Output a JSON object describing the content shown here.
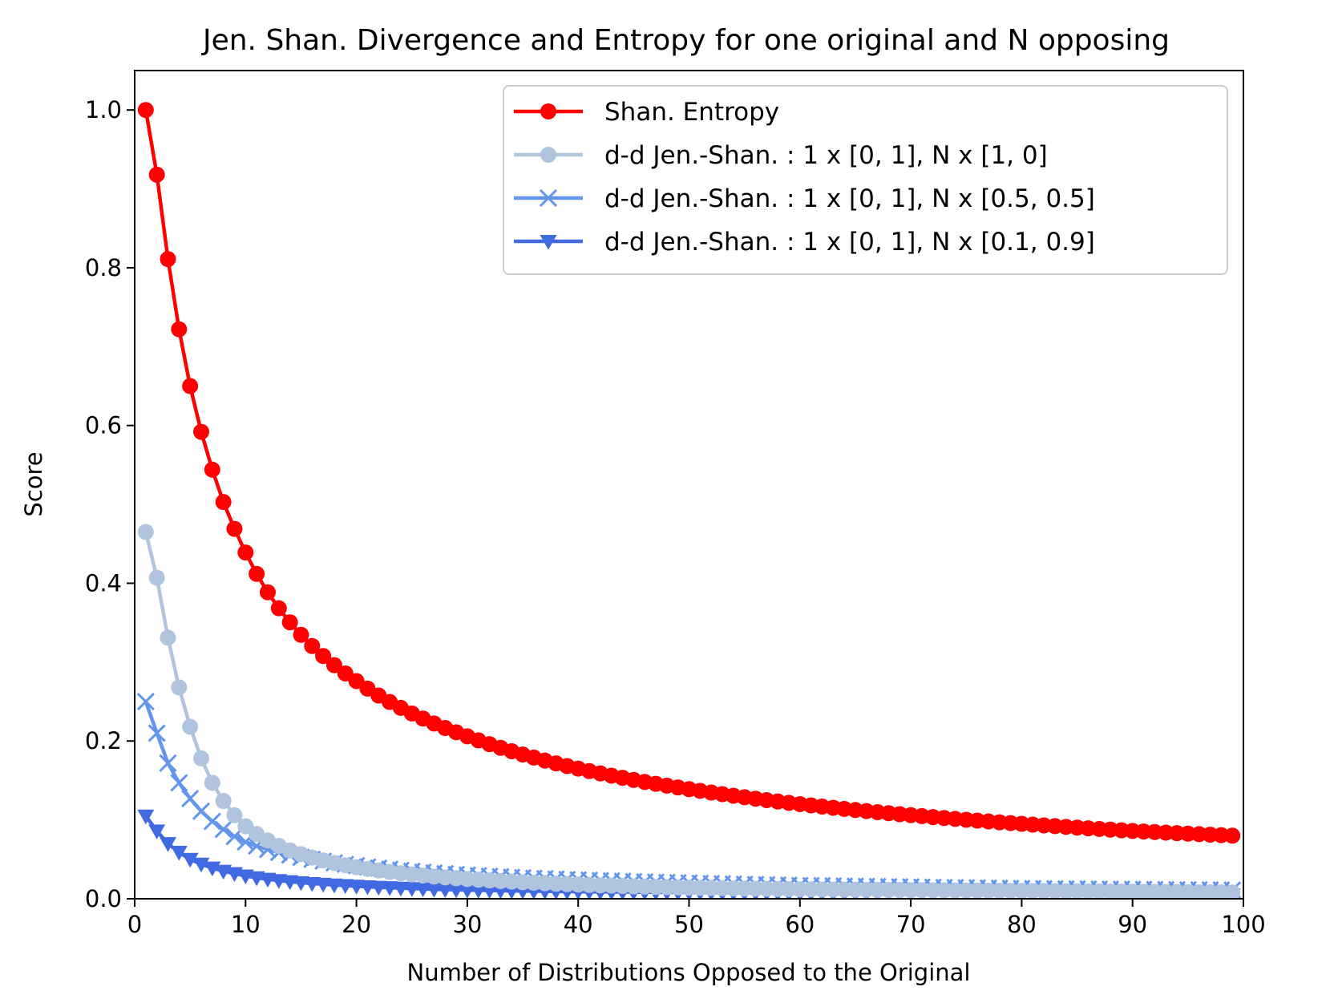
{
  "chart_data": {
    "type": "line",
    "title": "Jen. Shan. Divergence and Entropy for one original and N opposing",
    "xlabel": "Number of Distributions Opposed to the Original",
    "ylabel": "Score",
    "xlim": [
      0,
      100
    ],
    "ylim": [
      0,
      1.05
    ],
    "x_ticks": [
      0,
      10,
      20,
      30,
      40,
      50,
      60,
      70,
      80,
      90,
      100
    ],
    "x_tick_labels": [
      "0",
      "10",
      "20",
      "30",
      "40",
      "50",
      "60",
      "70",
      "80",
      "90",
      "100"
    ],
    "y_ticks": [
      0,
      0.2,
      0.4,
      0.6,
      0.8,
      1.0
    ],
    "y_tick_labels": [
      "0.0",
      "0.2",
      "0.4",
      "0.6",
      "0.8",
      "1.0"
    ],
    "grid": false,
    "legend_position": "top-right",
    "x_range": {
      "start": 1,
      "end": 99,
      "step": 1
    },
    "series": [
      {
        "name": "Shan. Entropy",
        "color": "#ff0000",
        "marker": "circle",
        "approx_values": {
          "1": 1.0,
          "2": 0.918,
          "3": 0.811,
          "4": 0.722,
          "5": 0.65,
          "6": 0.592,
          "7": 0.544,
          "8": 0.503,
          "9": 0.469,
          "10": 0.439,
          "20": 0.276,
          "30": 0.206,
          "40": 0.165,
          "50": 0.139,
          "60": 0.12,
          "70": 0.106,
          "80": 0.095,
          "90": 0.086,
          "99": 0.08
        }
      },
      {
        "name": "d-d Jen.-Shan. : 1 x [0, 1], N x [1, 0]",
        "color": "#b0c4de",
        "marker": "circle",
        "approx_values": {
          "1": 0.465,
          "2": 0.407,
          "3": 0.331,
          "4": 0.268,
          "5": 0.218,
          "6": 0.178,
          "7": 0.147,
          "8": 0.124,
          "9": 0.106,
          "10": 0.092,
          "20": 0.04,
          "30": 0.025,
          "40": 0.018,
          "50": 0.014,
          "60": 0.012,
          "70": 0.011,
          "80": 0.01,
          "90": 0.009,
          "99": 0.008
        }
      },
      {
        "name": "d-d Jen.-Shan. : 1 x [0, 1], N x [0.5, 0.5]",
        "color": "#6495ed",
        "marker": "x",
        "approx_values": {
          "1": 0.25,
          "2": 0.21,
          "3": 0.172,
          "4": 0.147,
          "5": 0.127,
          "6": 0.111,
          "7": 0.098,
          "8": 0.088,
          "9": 0.079,
          "10": 0.072,
          "20": 0.042,
          "30": 0.03,
          "40": 0.024,
          "50": 0.02,
          "60": 0.017,
          "70": 0.015,
          "80": 0.013,
          "90": 0.012,
          "99": 0.011
        }
      },
      {
        "name": "d-d Jen.-Shan. : 1 x [0, 1], N x [0.1, 0.9]",
        "color": "#4169e1",
        "marker": "triangle-down",
        "approx_values": {
          "1": 0.105,
          "2": 0.086,
          "3": 0.07,
          "4": 0.059,
          "5": 0.05,
          "6": 0.044,
          "7": 0.039,
          "8": 0.035,
          "9": 0.032,
          "10": 0.029,
          "20": 0.016,
          "30": 0.011,
          "40": 0.009,
          "50": 0.008,
          "60": 0.007,
          "70": 0.0065,
          "80": 0.006,
          "90": 0.0055,
          "99": 0.005
        }
      }
    ]
  }
}
